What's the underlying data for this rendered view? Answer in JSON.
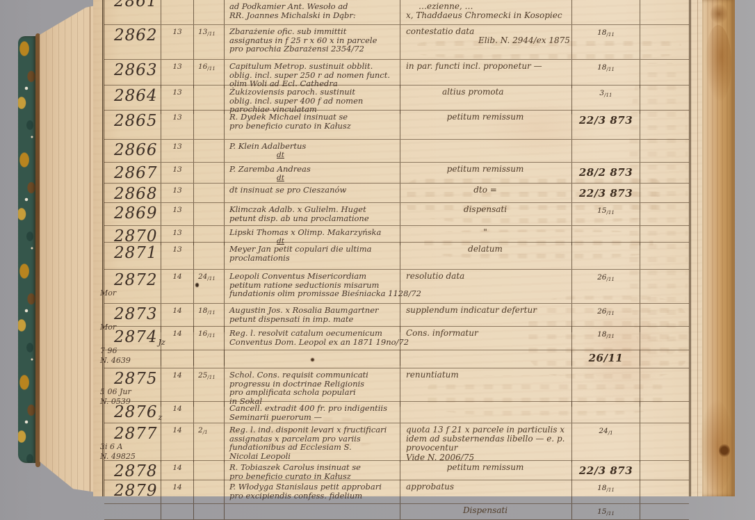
{
  "colors": {
    "backdrop_gray": "#9c9b9f",
    "paper": "#ead6b8",
    "ink": "#43332a",
    "rule_line": "#52402c",
    "marble_teal": "#35564b",
    "marble_ochre": "#b8841f",
    "edge_brown": "#bb8d52"
  },
  "register": {
    "rows": [
      {
        "number": "2861",
        "number_suffix": "",
        "margin_notes": [],
        "folio": "",
        "date_received": "",
        "entry_lines": [
          "ad Podkamier Ant. Wesoło ad",
          "RR. Joannes Michalski in Dąbr:"
        ],
        "resolution_lines": [
          "…ezienne, …",
          "x, Thaddaeus Chromecki in Kosopiec"
        ],
        "resolution_date": ""
      },
      {
        "number": "2862",
        "number_suffix": "",
        "margin_notes": [],
        "folio": "13",
        "date_received": "13/11",
        "entry_lines": [
          "Zbarażenie ofic. sub immittit",
          "assignatus in f 25 r x 60 x in parcele",
          "pro parochia Zbarażensi   2354/72"
        ],
        "resolution_lines": [
          "contestatio data",
          "Elib. N. 2944/ex 1875"
        ],
        "resolution_date": "18/11"
      },
      {
        "number": "2863",
        "number_suffix": "",
        "margin_notes": [],
        "folio": "13",
        "date_received": "16/11",
        "entry_lines": [
          "Capitulum Metrop. sustinuit obblit.",
          "oblig. incl. super 250 r ad nomen funct.",
          "olim Woli ad Ecl. Cathedra"
        ],
        "resolution_lines": [
          "in par. functi incl. proponetur —"
        ],
        "resolution_date": "18/11"
      },
      {
        "number": "2864",
        "number_suffix": "",
        "margin_notes": [],
        "folio": "13",
        "date_received": "",
        "entry_lines": [
          "Żukizoviensis paroch. sustinuit",
          "oblig. incl. super 400 f ad nomen",
          "parochiae vinculatam"
        ],
        "resolution_lines": [
          "altius promota"
        ],
        "resolution_date": "3/11"
      },
      {
        "number": "2865",
        "number_suffix": "",
        "margin_notes": [],
        "folio": "13",
        "date_received": "",
        "entry_lines": [
          "R. Dydek Michael insinuat se",
          "pro beneficio curato in Kałusz"
        ],
        "resolution_lines": [
          "petitum remissum"
        ],
        "resolution_date": "22/3 873"
      },
      {
        "number": "2866",
        "number_suffix": "",
        "margin_notes": [],
        "folio": "13",
        "date_received": "",
        "entry_lines": [
          "P. Klein Adalbertus",
          "dt"
        ],
        "resolution_lines": [],
        "resolution_date": ""
      },
      {
        "number": "2867",
        "number_suffix": "",
        "margin_notes": [],
        "folio": "13",
        "date_received": "",
        "entry_lines": [
          "P. Zaremba Andreas",
          "dt"
        ],
        "resolution_lines": [
          "petitum remissum"
        ],
        "resolution_date": "28/2 873"
      },
      {
        "number": "2868",
        "number_suffix": "",
        "margin_notes": [],
        "folio": "13",
        "date_received": "",
        "entry_lines": [
          "dt insinuat se pro Cieszanów"
        ],
        "resolution_lines": [
          "dto ="
        ],
        "resolution_date": "22/3 873"
      },
      {
        "number": "2869",
        "number_suffix": "",
        "margin_notes": [],
        "folio": "13",
        "date_received": "",
        "entry_lines": [
          "Klimczak Adalb. x Gulielm. Huget",
          "petunt disp. ab una proclamatione"
        ],
        "resolution_lines": [
          "dispensati"
        ],
        "resolution_date": "15/11"
      },
      {
        "number": "2870",
        "number_suffix": "",
        "margin_notes": [],
        "folio": "13",
        "date_received": "",
        "entry_lines": [
          "Lipski Thomas x Olimp. Makarzyńska",
          "dt"
        ],
        "resolution_lines": [
          "\""
        ],
        "resolution_date": ""
      },
      {
        "number": "2871",
        "number_suffix": "",
        "margin_notes": [],
        "folio": "13",
        "date_received": "",
        "entry_lines": [
          "Meyer Jan petit copulari die ultima",
          "proclamationis"
        ],
        "resolution_lines": [
          "delatum"
        ],
        "resolution_date": ""
      },
      {
        "number": "2872",
        "number_suffix": "",
        "margin_notes": [
          "Mor"
        ],
        "folio": "14",
        "date_received": "24/11",
        "entry_lines": [
          "Leopoli Conventus Misericordiam",
          "petitum ratione seductionis misarum",
          "fundationis olim promissae Bieśniacka 1128/72"
        ],
        "resolution_lines": [
          "resolutio data"
        ],
        "resolution_date": "26/11"
      },
      {
        "number": "2873",
        "number_suffix": "",
        "margin_notes": [
          "Mor"
        ],
        "folio": "14",
        "date_received": "18/11",
        "entry_lines": [
          "Augustin Jos. x Rosalia Baumgartner",
          "petunt dispensati in imp. mate"
        ],
        "resolution_lines": [
          "supplendum indicatur defertur"
        ],
        "resolution_date": "26/11"
      },
      {
        "number": "2874",
        "number_suffix": "Jz",
        "margin_notes": [
          "7 96",
          "N. 4639"
        ],
        "folio": "14",
        "date_received": "16/11",
        "entry_lines": [
          "Reg. l. resolvit catalum oecumenicum",
          "Conventus Dom. Leopol ex an 1871 19no/72"
        ],
        "resolution_lines": [
          "Cons. informatur"
        ],
        "resolution_date": "18/11"
      },
      {
        "number": "",
        "number_suffix": "",
        "margin_notes": [],
        "folio": "",
        "date_received": "",
        "entry_lines": [],
        "resolution_lines": [],
        "resolution_date": "26/11"
      },
      {
        "number": "2875",
        "number_suffix": "",
        "margin_notes": [
          "5 06 Jur",
          "N. 0539"
        ],
        "folio": "14",
        "date_received": "25/11",
        "entry_lines": [
          "Schol. Cons. requisit communicati",
          "progressu in doctrinae Religionis",
          "pro amplificata schola populari",
          "in Sokal"
        ],
        "resolution_lines": [
          "renuntiatum"
        ],
        "resolution_date": ""
      },
      {
        "number": "2876",
        "number_suffix": "z",
        "margin_notes": [],
        "folio": "14",
        "date_received": "",
        "entry_lines": [
          "Cancell. extradit 400 fr. pro indigentiis",
          "Seminarii puerorum —"
        ],
        "resolution_lines": [],
        "resolution_date": ""
      },
      {
        "number": "2877",
        "number_suffix": "",
        "margin_notes": [
          "3i 6 A",
          "N. 49825"
        ],
        "folio": "14",
        "date_received": "2/1",
        "entry_lines": [
          "Reg. l. ind. disponit levari x fructificari",
          "assignatas x parcelam pro variis",
          "fundationibus ad Ecclesiam S.",
          "Nicolai Leopoli"
        ],
        "resolution_lines": [
          "quota 13 f 21 x parcele in particulis x",
          "idem ad substernendas libello — e. p.",
          "provocentur",
          "Vide N. 2006/75"
        ],
        "resolution_date": "24/1"
      },
      {
        "number": "2878",
        "number_suffix": "",
        "margin_notes": [],
        "folio": "14",
        "date_received": "",
        "entry_lines": [
          "R. Tobiaszek Carolus insinuat se",
          "pro beneficio curato in Kałusz"
        ],
        "resolution_lines": [
          "petitum remissum"
        ],
        "resolution_date": "22/3 873"
      },
      {
        "number": "2879",
        "number_suffix": "",
        "margin_notes": [],
        "folio": "14",
        "date_received": "",
        "entry_lines": [
          "P. Włodyga Stanislaus petit approbari",
          "pro excipiendis confess. fidelium"
        ],
        "resolution_lines": [
          "approbatus"
        ],
        "resolution_date": "18/11"
      },
      {
        "number": "",
        "number_suffix": "",
        "margin_notes": [],
        "folio": "",
        "date_received": "",
        "entry_lines": [],
        "resolution_lines": [
          "Dispensati"
        ],
        "resolution_date": "15/11"
      }
    ]
  }
}
